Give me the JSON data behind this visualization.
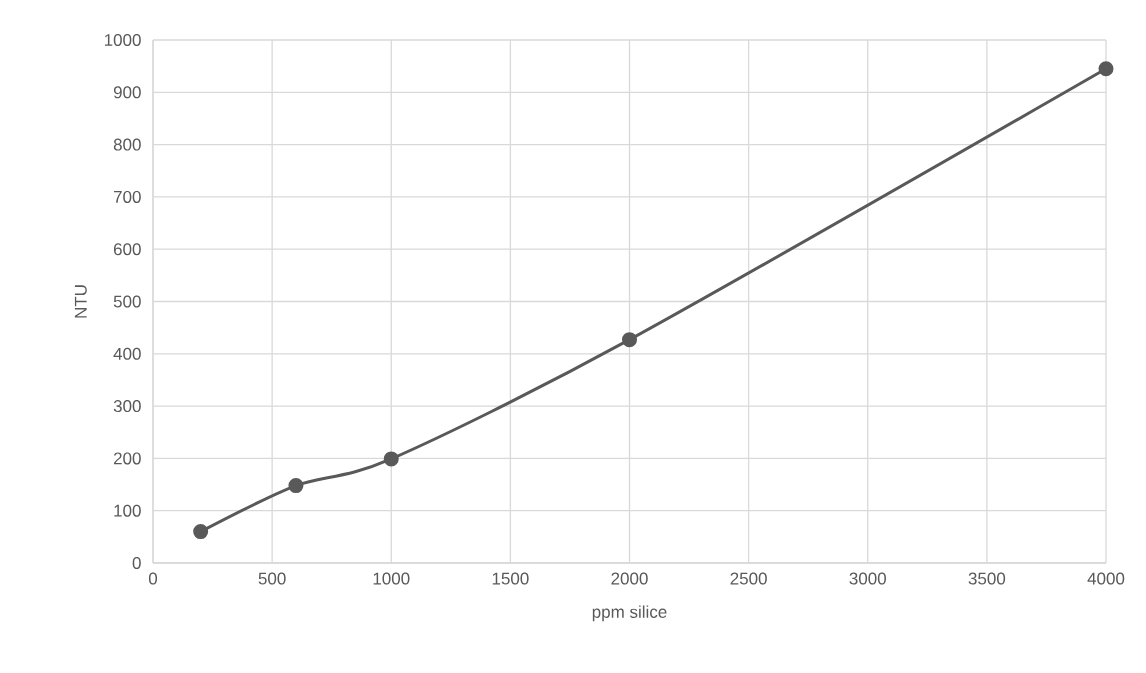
{
  "chart_data": {
    "type": "line",
    "xlabel": "ppm silice",
    "ylabel": "NTU",
    "x": [
      200,
      600,
      1000,
      2000,
      4000
    ],
    "series": [
      {
        "color": "#595959",
        "values": [
          60,
          148,
          199,
          427,
          945
        ]
      }
    ],
    "xlim": [
      0,
      4000
    ],
    "ylim": [
      0,
      1000
    ],
    "xticks": [
      0,
      500,
      1000,
      1500,
      2000,
      2500,
      3000,
      3500,
      4000
    ],
    "yticks": [
      0,
      100,
      200,
      300,
      400,
      500,
      600,
      700,
      800,
      900,
      1000
    ],
    "grid": true,
    "marker": "circle",
    "line_style": "solid"
  }
}
